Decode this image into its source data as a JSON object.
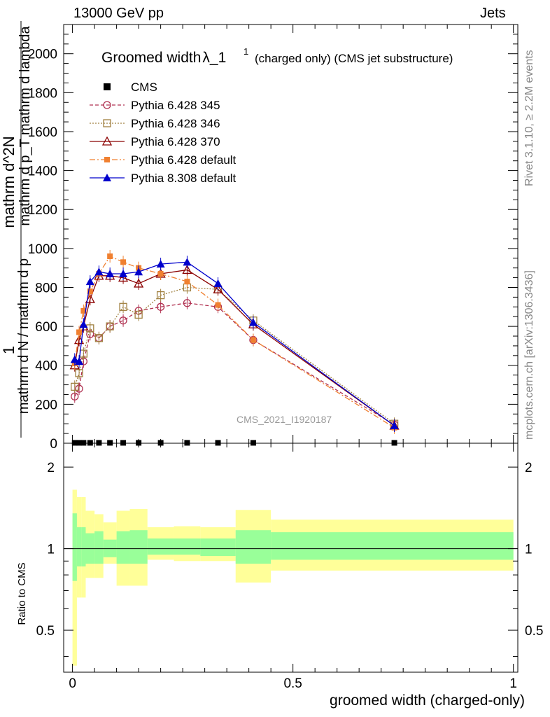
{
  "header": {
    "left": "13000 GeV pp",
    "right": "Jets",
    "side_rivet": "Rivet 3.1.10, ≥ 2.2M events",
    "side_mcplots": "mcplots.cern.ch [arXiv:1306.3436]"
  },
  "chart_data": {
    "type": "line",
    "title": "Groomed width",
    "title_symbol": "λ_1",
    "title_superscript": "1",
    "title_suffix": "(charged only) (CMS jet substructure)",
    "analysis_label": "CMS_2021_I1920187",
    "xlabel": "groomed width (charged-only)",
    "ylabel_numerator": "1",
    "ylabel_line1": "mathrm d N / mathrm d p",
    "ylabel_line1_sub": "T",
    "ylabel_line2": "mathrm d N / mathrm d p_T mathrm d lambda",
    "ylabel_denominator": "mathrm d N / mathrm d p_T mathrm d lambda",
    "ylabel_main_a": "mathrm d^2N",
    "ylabel_main_b": "mathrm d p_T mathrm d lambda",
    "ylabel_ratio": "Ratio to CMS",
    "xlim": [
      -0.02,
      1.01
    ],
    "ylim": [
      0,
      2150
    ],
    "ratio_ylim": [
      0.35,
      2.45
    ],
    "x_ticks": [
      "0",
      "0.5",
      "1"
    ],
    "y_ticks": [
      "0",
      "200",
      "400",
      "600",
      "800",
      "1000",
      "1200",
      "1400",
      "1600",
      "1800",
      "2000"
    ],
    "ratio_ticks": [
      "0.5",
      "1",
      "2"
    ],
    "x": [
      0.005,
      0.015,
      0.025,
      0.04,
      0.06,
      0.085,
      0.115,
      0.15,
      0.2,
      0.26,
      0.33,
      0.41,
      0.73
    ],
    "bin_edges": [
      0.0,
      0.01,
      0.02,
      0.03,
      0.05,
      0.07,
      0.1,
      0.13,
      0.17,
      0.23,
      0.29,
      0.37,
      0.45,
      1.0
    ],
    "series": [
      {
        "name": "CMS",
        "color": "#000000",
        "style": "data",
        "values": [
          2,
          2,
          2,
          2,
          2,
          2,
          2,
          2,
          2,
          2,
          2,
          2,
          2
        ]
      },
      {
        "name": "Pythia 6.428 345",
        "color": "#b03050",
        "style": "dashed",
        "marker": "open-circle",
        "values": [
          240,
          280,
          420,
          560,
          540,
          600,
          630,
          680,
          700,
          720,
          700,
          530,
          95
        ]
      },
      {
        "name": "Pythia 6.428 346",
        "color": "#a08040",
        "style": "dotted",
        "marker": "open-square",
        "values": [
          290,
          360,
          460,
          590,
          540,
          600,
          700,
          660,
          760,
          800,
          790,
          630,
          100
        ]
      },
      {
        "name": "Pythia 6.428 370",
        "color": "#8b0000",
        "style": "solid",
        "marker": "open-triangle",
        "values": [
          400,
          530,
          600,
          740,
          860,
          860,
          850,
          820,
          870,
          890,
          790,
          610,
          90
        ]
      },
      {
        "name": "Pythia 6.428 default",
        "color": "#f08030",
        "style": "dashdot",
        "marker": "filled-square",
        "values": [
          410,
          570,
          680,
          780,
          870,
          960,
          930,
          900,
          870,
          830,
          710,
          530,
          80
        ]
      },
      {
        "name": "Pythia 8.308 default",
        "color": "#0000cc",
        "style": "solid",
        "marker": "filled-triangle",
        "values": [
          430,
          420,
          610,
          830,
          880,
          870,
          870,
          880,
          920,
          930,
          820,
          620,
          90
        ]
      }
    ],
    "ratio_band_yellow": [
      [
        0.37,
        1.65
      ],
      [
        0.66,
        1.55
      ],
      [
        0.66,
        1.55
      ],
      [
        0.78,
        1.38
      ],
      [
        0.78,
        1.34
      ],
      [
        0.88,
        1.25
      ],
      [
        0.73,
        1.38
      ],
      [
        0.73,
        1.4
      ],
      [
        0.91,
        1.2
      ],
      [
        0.9,
        1.21
      ],
      [
        0.9,
        1.2
      ],
      [
        0.75,
        1.39
      ],
      [
        0.83,
        1.28
      ]
    ],
    "ratio_band_green": [
      [
        0.76,
        1.35
      ],
      [
        0.86,
        1.2
      ],
      [
        0.86,
        1.2
      ],
      [
        0.88,
        1.14
      ],
      [
        0.88,
        1.16
      ],
      [
        0.93,
        1.08
      ],
      [
        0.88,
        1.16
      ],
      [
        0.88,
        1.17
      ],
      [
        0.95,
        1.09
      ],
      [
        0.95,
        1.09
      ],
      [
        0.94,
        1.09
      ],
      [
        0.88,
        1.17
      ],
      [
        0.91,
        1.15
      ]
    ]
  }
}
